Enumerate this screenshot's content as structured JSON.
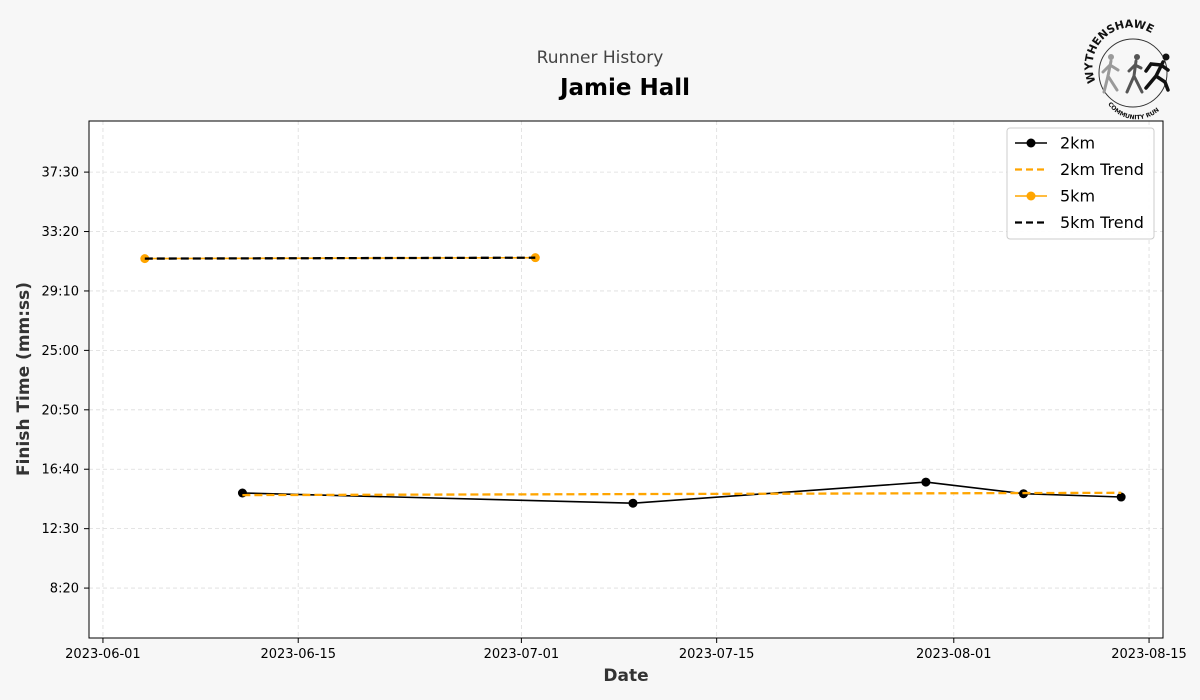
{
  "chart_data": {
    "type": "line",
    "suptitle": "Runner History",
    "title": "Jamie Hall",
    "xlabel": "Date",
    "ylabel": "Finish Time (mm:ss)",
    "x_ticks": [
      "2023-06-01",
      "2023-06-15",
      "2023-07-01",
      "2023-07-15",
      "2023-08-01",
      "2023-08-15"
    ],
    "y_ticks": [
      "8:20",
      "12:30",
      "16:40",
      "20:50",
      "25:00",
      "29:10",
      "33:20",
      "37:30"
    ],
    "xlim": [
      "2023-05-31",
      "2023-08-16"
    ],
    "ylim": [
      "4:50",
      "41:05"
    ],
    "grid": true,
    "legend_position": "top-right",
    "series": [
      {
        "name": "2km",
        "style": "solid-marker",
        "color": "#000000",
        "points": [
          {
            "x": "2023-06-11",
            "y": "15:00"
          },
          {
            "x": "2023-07-09",
            "y": "14:17"
          },
          {
            "x": "2023-07-30",
            "y": "15:46"
          },
          {
            "x": "2023-08-06",
            "y": "14:57"
          },
          {
            "x": "2023-08-13",
            "y": "14:43"
          }
        ]
      },
      {
        "name": "2km Trend",
        "style": "dashed",
        "color": "#FFA500",
        "points": [
          {
            "x": "2023-06-11",
            "y": "14:51"
          },
          {
            "x": "2023-08-13",
            "y": "15:01"
          }
        ]
      },
      {
        "name": "5km",
        "style": "solid-marker",
        "color": "#FFA500",
        "points": [
          {
            "x": "2023-06-04",
            "y": "31:26"
          },
          {
            "x": "2023-07-02",
            "y": "31:30"
          }
        ]
      },
      {
        "name": "5km Trend",
        "style": "dashed",
        "color": "#000000",
        "points": [
          {
            "x": "2023-06-04",
            "y": "31:26"
          },
          {
            "x": "2023-07-02",
            "y": "31:30"
          }
        ]
      }
    ]
  },
  "logo": {
    "arc_text": "WYTHENSHAWE",
    "sub_text": "COMMUNITY RUN"
  }
}
